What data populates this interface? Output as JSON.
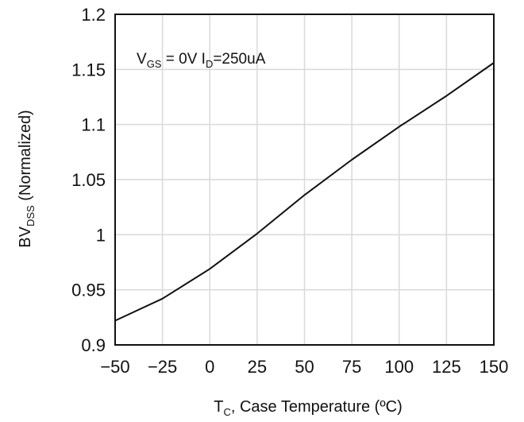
{
  "chart_data": {
    "type": "line",
    "title": "",
    "xlabel": "T",
    "xlabel_sub": "C",
    "xlabel_rest": ", Case Temperature (ºC)",
    "ylabel": "BV",
    "ylabel_sub": "DSS",
    "ylabel_rest": " (Normalized)",
    "xlim": [
      -50,
      150
    ],
    "ylim": [
      0.9,
      1.2
    ],
    "x_ticks": [
      -50,
      -25,
      0,
      25,
      50,
      75,
      100,
      125,
      150
    ],
    "x_tick_labels": [
      "−50",
      "−25",
      "0",
      "25",
      "50",
      "75",
      "100",
      "125",
      "150"
    ],
    "y_ticks": [
      0.9,
      0.95,
      1.0,
      1.05,
      1.1,
      1.15,
      1.2
    ],
    "y_tick_labels": [
      "0.9",
      "0.95",
      "1",
      "1.05",
      "1.1",
      "1.15",
      "1.2"
    ],
    "grid": true,
    "annotation": {
      "vgs_symbol": "V",
      "vgs_sub": "GS",
      "vgs_value": " = 0V  I",
      "id_sub": "D",
      "id_value": "=250uA"
    },
    "series": [
      {
        "x": [
          -50,
          -25,
          0,
          25,
          50,
          75,
          100,
          125,
          150
        ],
        "y": [
          0.922,
          0.942,
          0.969,
          1.001,
          1.036,
          1.068,
          1.098,
          1.126,
          1.156
        ]
      }
    ],
    "colors": {
      "line": "#111111",
      "grid": "#d9d9d9",
      "frame": "#111111"
    }
  }
}
